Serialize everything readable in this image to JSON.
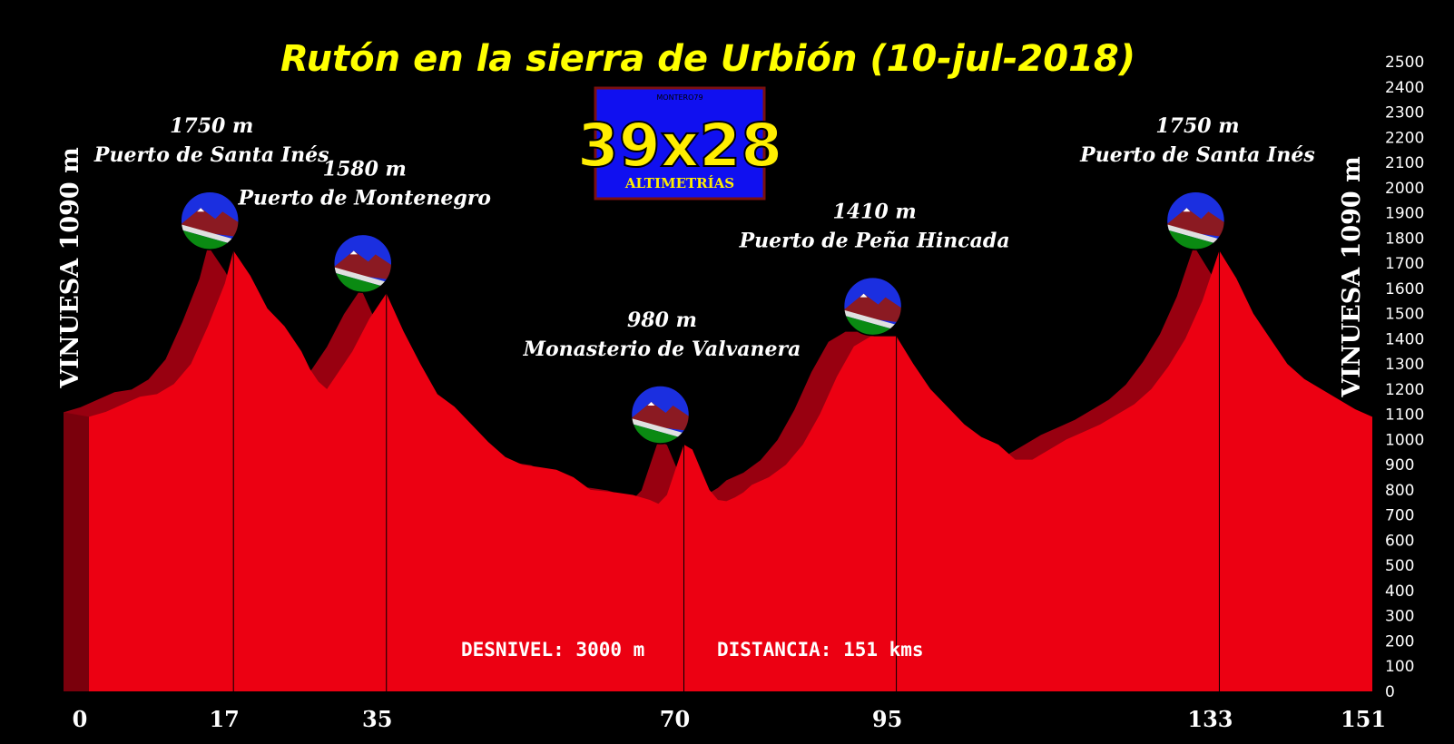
{
  "chart_data": {
    "type": "area",
    "title": "Rutón en la sierra de Urbión (10-jul-2018)",
    "start_label": "VINUESA 1090 m",
    "end_label": "VINUESA 1090 m",
    "x_ticks": [
      0,
      17,
      35,
      70,
      95,
      133,
      151
    ],
    "y_ticks": [
      0,
      100,
      200,
      300,
      400,
      500,
      600,
      700,
      800,
      900,
      1000,
      1100,
      1200,
      1300,
      1400,
      1500,
      1600,
      1700,
      1800,
      1900,
      2000,
      2100,
      2200,
      2300,
      2400,
      2500
    ],
    "xlim": [
      0,
      151
    ],
    "ylim": [
      0,
      2500
    ],
    "profile": [
      [
        0,
        1090
      ],
      [
        2,
        1110
      ],
      [
        4,
        1140
      ],
      [
        6,
        1170
      ],
      [
        8,
        1180
      ],
      [
        10,
        1220
      ],
      [
        12,
        1300
      ],
      [
        14,
        1450
      ],
      [
        16,
        1620
      ],
      [
        17,
        1750
      ],
      [
        19,
        1650
      ],
      [
        21,
        1520
      ],
      [
        23,
        1450
      ],
      [
        25,
        1350
      ],
      [
        26,
        1280
      ],
      [
        27,
        1230
      ],
      [
        28,
        1200
      ],
      [
        29,
        1250
      ],
      [
        31,
        1350
      ],
      [
        33,
        1480
      ],
      [
        35,
        1580
      ],
      [
        37,
        1430
      ],
      [
        39,
        1300
      ],
      [
        41,
        1180
      ],
      [
        43,
        1130
      ],
      [
        45,
        1060
      ],
      [
        47,
        990
      ],
      [
        49,
        930
      ],
      [
        51,
        900
      ],
      [
        53,
        890
      ],
      [
        55,
        880
      ],
      [
        57,
        850
      ],
      [
        59,
        800
      ],
      [
        62,
        790
      ],
      [
        64,
        780
      ],
      [
        66,
        760
      ],
      [
        67,
        745
      ],
      [
        68,
        780
      ],
      [
        69,
        880
      ],
      [
        70,
        980
      ],
      [
        71,
        960
      ],
      [
        72,
        880
      ],
      [
        73,
        800
      ],
      [
        74,
        760
      ],
      [
        75,
        755
      ],
      [
        76,
        770
      ],
      [
        77,
        790
      ],
      [
        78,
        820
      ],
      [
        80,
        850
      ],
      [
        82,
        900
      ],
      [
        84,
        980
      ],
      [
        86,
        1100
      ],
      [
        88,
        1250
      ],
      [
        90,
        1370
      ],
      [
        92,
        1410
      ],
      [
        95,
        1410
      ],
      [
        97,
        1300
      ],
      [
        99,
        1200
      ],
      [
        101,
        1130
      ],
      [
        103,
        1060
      ],
      [
        105,
        1010
      ],
      [
        107,
        980
      ],
      [
        109,
        920
      ],
      [
        111,
        920
      ],
      [
        113,
        960
      ],
      [
        115,
        1000
      ],
      [
        117,
        1030
      ],
      [
        119,
        1060
      ],
      [
        121,
        1100
      ],
      [
        123,
        1140
      ],
      [
        125,
        1200
      ],
      [
        127,
        1290
      ],
      [
        129,
        1400
      ],
      [
        131,
        1550
      ],
      [
        133,
        1750
      ],
      [
        135,
        1640
      ],
      [
        137,
        1500
      ],
      [
        139,
        1400
      ],
      [
        141,
        1300
      ],
      [
        143,
        1240
      ],
      [
        145,
        1200
      ],
      [
        147,
        1160
      ],
      [
        149,
        1120
      ],
      [
        151,
        1090
      ]
    ],
    "peaks": [
      {
        "km": 17,
        "alt_label": "1750 m",
        "name": "Puerto de Santa Inés"
      },
      {
        "km": 35,
        "alt_label": "1580 m",
        "name": "Puerto de Montenegro"
      },
      {
        "km": 70,
        "alt_label": "980 m",
        "name": "Monasterio de Valvanera"
      },
      {
        "km": 95,
        "alt_label": "1410 m",
        "name": "Puerto de Peña Hincada"
      },
      {
        "km": 133,
        "alt_label": "1750 m",
        "name": "Puerto de Santa Inés"
      }
    ],
    "stats": {
      "desnivel": "DESNIVEL: 3000 m",
      "distancia": "DISTANCIA: 151 kms"
    },
    "logo": {
      "top": "MONTERO79",
      "main": "39x28",
      "sub": "ALTIMETRÍAS"
    },
    "colors": {
      "fill": "#ec0012",
      "shadow": "#980010",
      "background": "#000000",
      "title": "#ffff00",
      "logo_bg": "#1010f0",
      "logo_text": "#ffee00"
    }
  }
}
